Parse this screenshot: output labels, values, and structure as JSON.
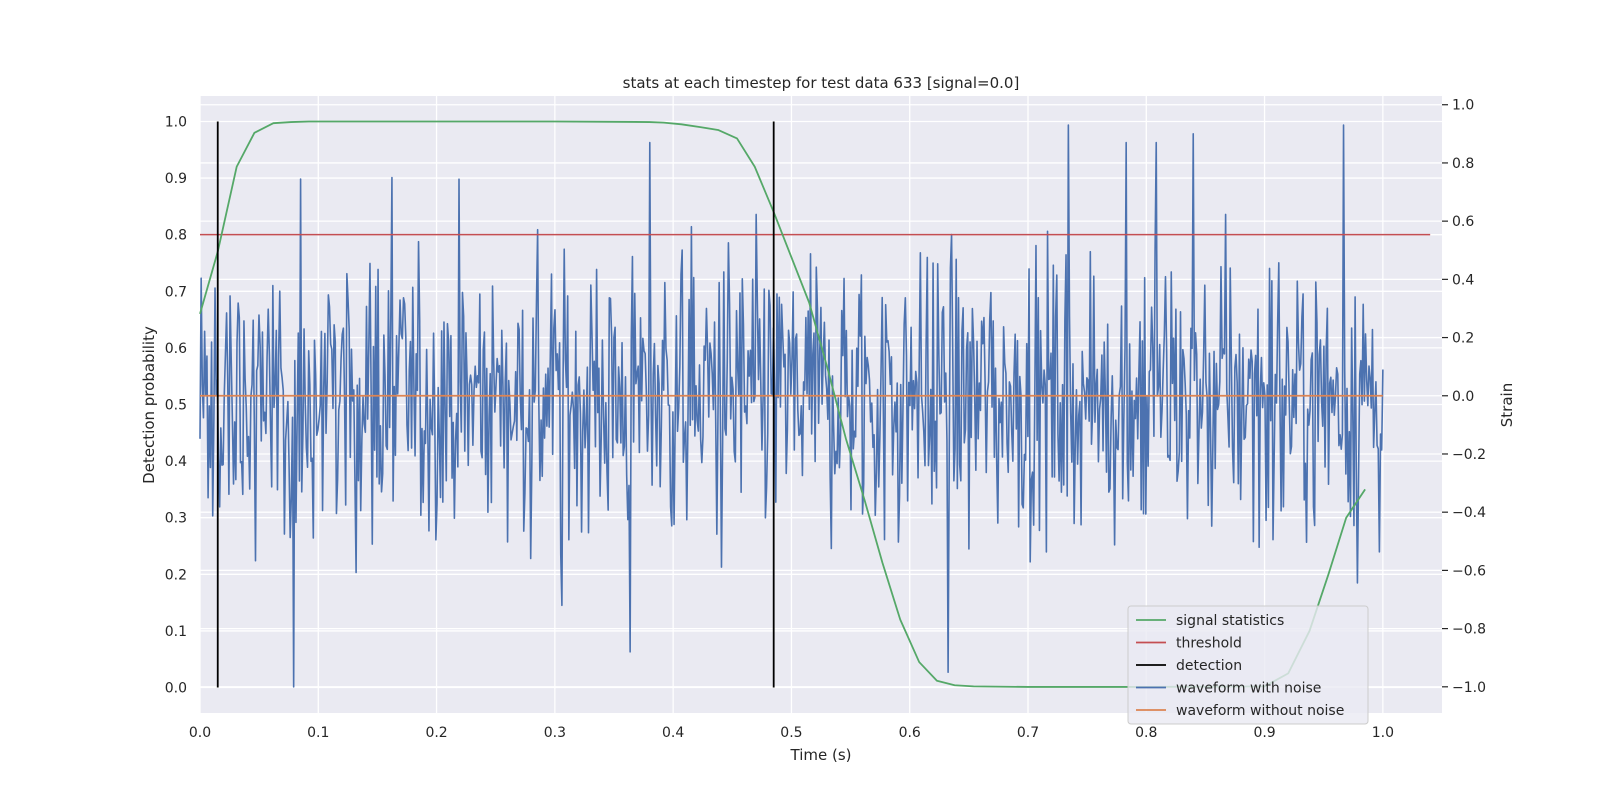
{
  "chart_data": {
    "type": "line",
    "title": "stats at each timestep for test data 633 [signal=0.0]",
    "xlabel": "Time (s)",
    "ylabel": "Detection probability",
    "y2label": "Strain",
    "xlim": [
      0.0,
      1.05
    ],
    "ylim": [
      -0.045,
      1.045
    ],
    "y2lim": [
      -1.09,
      1.03
    ],
    "xticks": [
      "0.0",
      "0.1",
      "0.2",
      "0.3",
      "0.4",
      "0.5",
      "0.6",
      "0.7",
      "0.8",
      "0.9",
      "1.0"
    ],
    "yticks": [
      "0.0",
      "0.1",
      "0.2",
      "0.3",
      "0.4",
      "0.5",
      "0.6",
      "0.7",
      "0.8",
      "0.9",
      "1.0"
    ],
    "y2ticks": [
      "−1.0",
      "−0.8",
      "−0.6",
      "−0.4",
      "−0.2",
      "0.0",
      "0.2",
      "0.4",
      "0.6",
      "0.8",
      "1.0"
    ],
    "grid": true,
    "legend_position": "lower right",
    "series": [
      {
        "name": "signal statistics",
        "color": "#55a868",
        "axis": "left",
        "x": [
          0.0,
          0.015,
          0.031,
          0.046,
          0.062,
          0.077,
          0.092,
          0.2,
          0.3,
          0.38,
          0.392,
          0.407,
          0.423,
          0.438,
          0.454,
          0.469,
          0.485,
          0.5,
          0.515,
          0.531,
          0.546,
          0.562,
          0.577,
          0.592,
          0.608,
          0.623,
          0.638,
          0.654,
          0.7,
          0.8,
          0.9,
          0.92,
          0.938,
          0.954,
          0.969,
          0.985
        ],
        "values": [
          0.66,
          0.77,
          0.92,
          0.98,
          0.997,
          0.999,
          1.0,
          1.0,
          1.0,
          0.999,
          0.998,
          0.995,
          0.99,
          0.985,
          0.97,
          0.92,
          0.84,
          0.76,
          0.68,
          0.56,
          0.44,
          0.33,
          0.22,
          0.12,
          0.045,
          0.012,
          0.004,
          0.002,
          0.001,
          0.001,
          0.002,
          0.025,
          0.1,
          0.2,
          0.3,
          0.35
        ]
      },
      {
        "name": "threshold",
        "color": "#c44e52",
        "axis": "left",
        "x": [
          0.0,
          1.04
        ],
        "values": [
          0.8,
          0.8
        ]
      },
      {
        "name": "detection",
        "color": "#000000",
        "axis": "left",
        "segments": [
          {
            "x": 0.015,
            "y": [
              0.0,
              1.0
            ]
          },
          {
            "x": 0.485,
            "y": [
              0.0,
              1.0
            ]
          }
        ]
      },
      {
        "name": "waveform with noise",
        "color": "#4c72b0",
        "axis": "right",
        "description_of_generation": "",
        "num_points": 1024,
        "x_range": [
          0.0,
          1.0
        ],
        "approx_std": 0.25,
        "value_range": [
          -1.0,
          1.0
        ],
        "notable_points": [
          {
            "x": 0.079,
            "y": -1.0
          },
          {
            "x": 0.162,
            "y": 0.75
          },
          {
            "x": 0.306,
            "y": -0.72
          },
          {
            "x": 0.364,
            "y": -0.88
          },
          {
            "x": 0.38,
            "y": 0.87
          },
          {
            "x": 0.734,
            "y": 0.93
          },
          {
            "x": 0.783,
            "y": 0.87
          },
          {
            "x": 0.808,
            "y": 0.87
          },
          {
            "x": 0.84,
            "y": 0.9
          },
          {
            "x": 0.967,
            "y": 0.93
          },
          {
            "x": 0.632,
            "y": -0.95
          }
        ]
      },
      {
        "name": "waveform without noise",
        "color": "#dd8452",
        "axis": "right",
        "x": [
          0.0,
          1.0
        ],
        "values": [
          0.0,
          0.0
        ]
      }
    ]
  }
}
